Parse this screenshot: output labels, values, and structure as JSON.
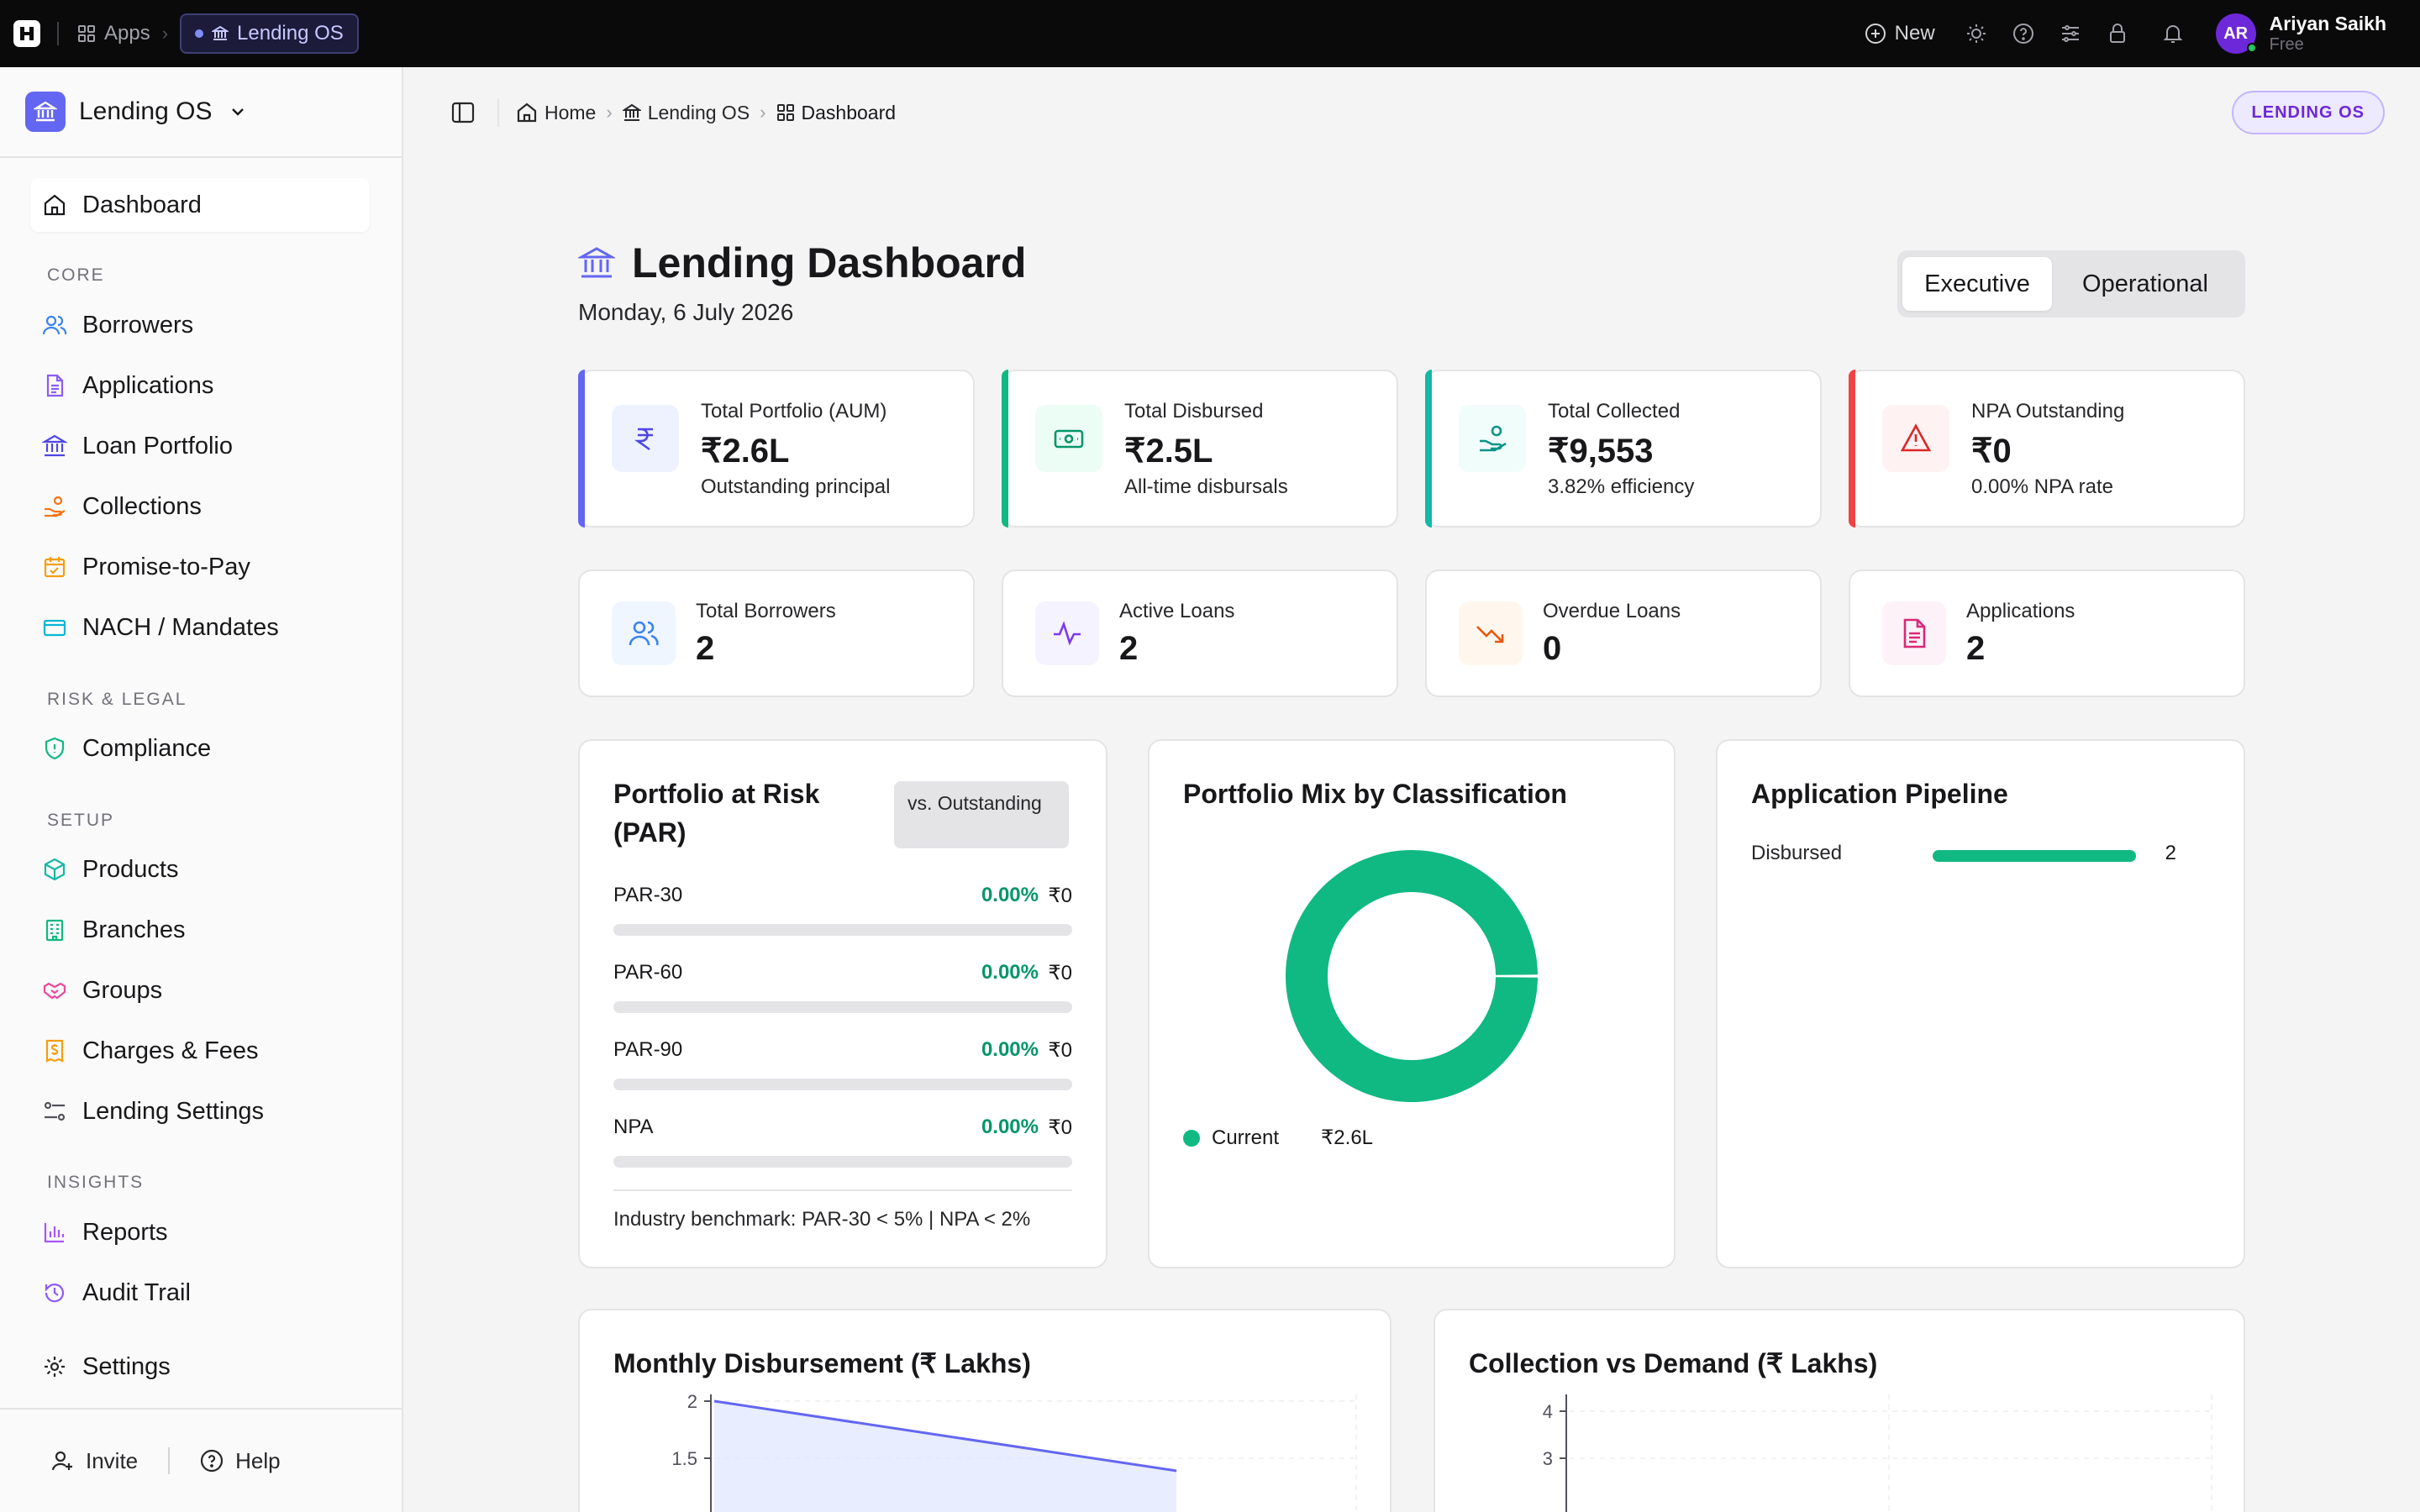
{
  "topbar": {
    "apps_label": "Apps",
    "current_app": "Lending OS",
    "new_label": "New",
    "user": {
      "initials": "AR",
      "name": "Ariyan Saikh",
      "plan": "Free"
    }
  },
  "sidebar": {
    "org_name": "Lending OS",
    "dashboard_label": "Dashboard",
    "sections": {
      "core": "CORE",
      "risk_legal": "RISK & LEGAL",
      "setup": "SETUP",
      "insights": "INSIGHTS"
    },
    "core_items": [
      {
        "label": "Borrowers",
        "icon": "users-icon"
      },
      {
        "label": "Applications",
        "icon": "file-text-icon"
      },
      {
        "label": "Loan Portfolio",
        "icon": "bank-icon"
      },
      {
        "label": "Collections",
        "icon": "hand-coins-icon"
      },
      {
        "label": "Promise-to-Pay",
        "icon": "calendar-check-icon"
      },
      {
        "label": "NACH / Mandates",
        "icon": "credit-card-icon"
      }
    ],
    "risk_items": [
      {
        "label": "Compliance",
        "icon": "shield-check-icon"
      }
    ],
    "setup_items": [
      {
        "label": "Products",
        "icon": "package-icon"
      },
      {
        "label": "Branches",
        "icon": "building-icon"
      },
      {
        "label": "Groups",
        "icon": "handshake-icon"
      },
      {
        "label": "Charges & Fees",
        "icon": "receipt-icon"
      },
      {
        "label": "Lending Settings",
        "icon": "sliders-icon"
      }
    ],
    "insight_items": [
      {
        "label": "Reports",
        "icon": "bar-chart-icon"
      },
      {
        "label": "Audit Trail",
        "icon": "history-icon"
      }
    ],
    "settings_label": "Settings",
    "invite_label": "Invite",
    "help_label": "Help"
  },
  "header": {
    "breadcrumbs": [
      "Home",
      "Lending OS",
      "Dashboard"
    ],
    "badge": "LENDING OS"
  },
  "page": {
    "title": "Lending Dashboard",
    "date": "Monday, 6 July 2026",
    "view_tabs": [
      "Executive",
      "Operational"
    ],
    "active_tab": "Executive"
  },
  "kpis": [
    {
      "label": "Total Portfolio (AUM)",
      "value": "₹2.6L",
      "sub": "Outstanding principal",
      "icon": "rupee-icon",
      "accent": "#6366f1"
    },
    {
      "label": "Total Disbursed",
      "value": "₹2.5L",
      "sub": "All-time disbursals",
      "icon": "banknote-icon",
      "accent": "#10b981"
    },
    {
      "label": "Total Collected",
      "value": "₹9,553",
      "sub": "3.82% efficiency",
      "icon": "hand-coins-icon",
      "accent": "#14b8a6"
    },
    {
      "label": "NPA Outstanding",
      "value": "₹0",
      "sub": "0.00% NPA rate",
      "icon": "alert-triangle-icon",
      "accent": "#ef4444"
    }
  ],
  "stats": [
    {
      "label": "Total Borrowers",
      "value": "2",
      "icon": "users-icon"
    },
    {
      "label": "Active Loans",
      "value": "2",
      "icon": "activity-icon"
    },
    {
      "label": "Overdue Loans",
      "value": "0",
      "icon": "trending-down-icon"
    },
    {
      "label": "Applications",
      "value": "2",
      "icon": "file-text-icon"
    }
  ],
  "par": {
    "title": "Portfolio at Risk (PAR)",
    "tag": "vs. Outstanding",
    "rows": [
      {
        "name": "PAR-30",
        "pct": "0.00%",
        "amount": "₹0",
        "fill": 0
      },
      {
        "name": "PAR-60",
        "pct": "0.00%",
        "amount": "₹0",
        "fill": 0
      },
      {
        "name": "PAR-90",
        "pct": "0.00%",
        "amount": "₹0",
        "fill": 0
      },
      {
        "name": "NPA",
        "pct": "0.00%",
        "amount": "₹0",
        "fill": 0
      }
    ],
    "footer": "Industry benchmark: PAR-30 < 5% | NPA < 2%"
  },
  "portfolio_mix": {
    "title": "Portfolio Mix by Classification",
    "legend_label": "Current",
    "legend_amount": "₹2.6L"
  },
  "pipeline": {
    "title": "Application Pipeline",
    "rows": [
      {
        "name": "Disbursed",
        "count": "2",
        "fill": 1.0
      }
    ]
  },
  "monthly_chart_title": "Monthly Disbursement (₹ Lakhs)",
  "collection_chart_title": "Collection vs Demand (₹ Lakhs)",
  "chart_data": [
    {
      "type": "pie",
      "title": "Portfolio Mix by Classification",
      "categories": [
        "Current"
      ],
      "values": [
        2.6
      ],
      "colors": [
        "#10b981"
      ]
    },
    {
      "type": "area",
      "title": "Monthly Disbursement (₹ Lakhs)",
      "y_ticks": [
        "2",
        "1.5"
      ],
      "ylim_visible": [
        1.5,
        2
      ],
      "series": [
        {
          "x_frac": [
            0,
            0.72
          ],
          "values": [
            2.0,
            1.39
          ]
        }
      ],
      "grid": true,
      "color": "#6366f1"
    },
    {
      "type": "line",
      "title": "Collection vs Demand (₹ Lakhs)",
      "y_ticks": [
        "4",
        "3"
      ],
      "ylim_visible": [
        3,
        4
      ],
      "grid": true
    }
  ]
}
